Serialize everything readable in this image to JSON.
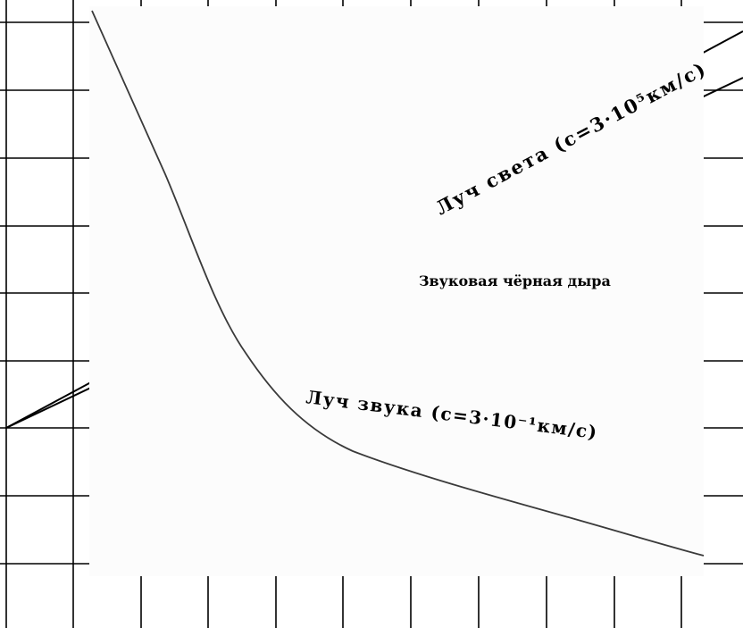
{
  "diagram": {
    "light_ray_label": "Луч света (c=3·10⁵км/с)",
    "black_hole_label": "Звуковая чёрная дыра",
    "sound_ray_label": "Луч звука (c=3·10⁻¹км/с)"
  },
  "colors": {
    "grid": "#000000",
    "panel": "#fcfcfc",
    "sound_curve": "#3a3a3a"
  }
}
